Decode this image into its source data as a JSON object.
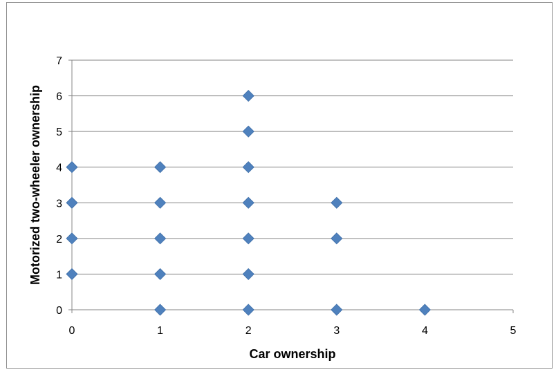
{
  "chart_data": {
    "type": "scatter",
    "title": "",
    "xlabel": "Car ownership",
    "ylabel": "Motorized two-wheeler ownership",
    "xlim": [
      0,
      5
    ],
    "ylim": [
      0,
      7
    ],
    "x_ticks": [
      "0",
      "1",
      "2",
      "3",
      "4",
      "5"
    ],
    "y_ticks": [
      "0",
      "1",
      "2",
      "3",
      "4",
      "5",
      "6",
      "7"
    ],
    "grid": "horizontal",
    "legend": "none",
    "marker": "diamond",
    "marker_color": "#4f81bd",
    "points": [
      {
        "x": 0,
        "y": 1
      },
      {
        "x": 0,
        "y": 2
      },
      {
        "x": 0,
        "y": 3
      },
      {
        "x": 0,
        "y": 4
      },
      {
        "x": 1,
        "y": 0
      },
      {
        "x": 1,
        "y": 1
      },
      {
        "x": 1,
        "y": 2
      },
      {
        "x": 1,
        "y": 3
      },
      {
        "x": 1,
        "y": 4
      },
      {
        "x": 2,
        "y": 0
      },
      {
        "x": 2,
        "y": 1
      },
      {
        "x": 2,
        "y": 2
      },
      {
        "x": 2,
        "y": 3
      },
      {
        "x": 2,
        "y": 4
      },
      {
        "x": 2,
        "y": 5
      },
      {
        "x": 2,
        "y": 6
      },
      {
        "x": 3,
        "y": 0
      },
      {
        "x": 3,
        "y": 2
      },
      {
        "x": 3,
        "y": 3
      },
      {
        "x": 4,
        "y": 0
      }
    ]
  }
}
